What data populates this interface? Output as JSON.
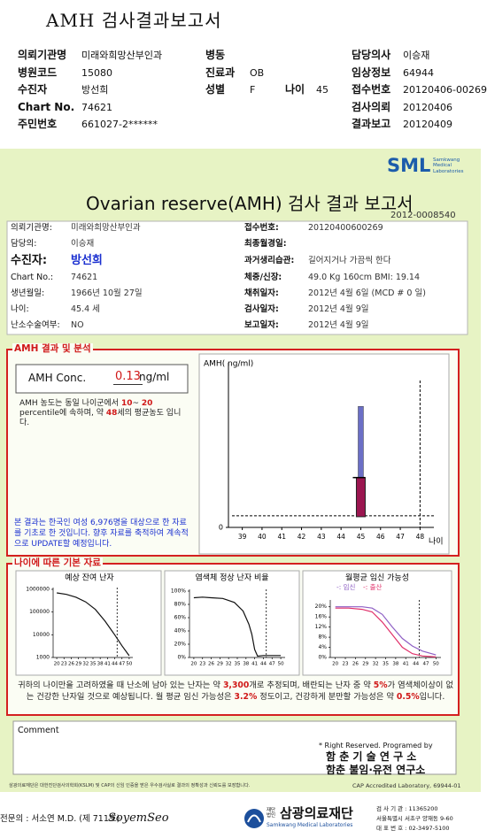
{
  "header": {
    "title": "AMH 검사결과보고서",
    "fields": [
      [
        "의뢰기관명",
        "미래와희망산부인과"
      ],
      [
        "병동"
      ],
      [
        "담당의사",
        "이승재"
      ],
      [
        "병원코드",
        "15080"
      ],
      [
        "진료과",
        "OB"
      ],
      [
        "임상정보",
        "64944"
      ],
      [
        "수진자",
        "방선희"
      ],
      [
        "성별",
        "F"
      ],
      [
        "나이",
        "45"
      ],
      [
        "접수번호",
        "20120406-00269"
      ],
      [
        "Chart No.",
        "74621"
      ],
      [
        "검사의뢰",
        "20120406"
      ],
      [
        "주민번호",
        "661027-2******"
      ],
      [
        "결과보고",
        "20120409"
      ]
    ]
  },
  "report": {
    "logo": "SML",
    "logo_sub": "Samkwang Medical Laboratories",
    "title": "Ovarian reserve(AMH) 검사 결과 보고서",
    "number": "2012-0008540",
    "info_left": [
      [
        "의뢰기관명:",
        "미래와희망산부인과"
      ],
      [
        "담당의:",
        "이승재"
      ],
      [
        "수진자:",
        "방선희"
      ],
      [
        "Chart No.:",
        "74621"
      ],
      [
        "생년월일:",
        "1966년 10월 27일"
      ],
      [
        "나이:",
        "45.4 세"
      ],
      [
        "난소수술여부:",
        "NO"
      ]
    ],
    "info_right": [
      [
        "접수번호:",
        "20120400600269"
      ],
      [
        "최종월경일:"
      ],
      [
        "과거생리습관:",
        "길어지거나 가끔씩 한다"
      ],
      [
        "체중/신장:",
        "49.0 Kg  160cm   BMI: 19.14"
      ],
      [
        "채취일자:",
        "2012년 4월 6일   (MCD # 0 일)"
      ],
      [
        "검사일자:",
        "2012년 4월 9일"
      ],
      [
        "보고일자:",
        "2012년 4월 9일"
      ]
    ],
    "amh": {
      "heading": "AMH 결과 및 분석",
      "conc_label": "AMH Conc.",
      "conc_value": 0.13,
      "conc_unit": "ng/ml",
      "note": [
        "AMH 농도는 동일 나이군에서 ",
        "10",
        "~ ",
        "20",
        " percentile에 속하며, 약 ",
        "48",
        "세의 평균농도 입니다."
      ],
      "disclaimer": "본 결과는 한국인 여성 6,976명을 대상으로 한 자료를 기초로 한 것입니다. 향후 자료를 축적하여 계속적으로 UPDATE할 예정입니다.",
      "chart": {
        "y_label": "AMH( ng/ml)",
        "x_label": "나이",
        "ylim": [
          0,
          1.8
        ],
        "yticks": [
          0
        ],
        "xlim": [
          38.3,
          48.7
        ],
        "xticks": [
          39,
          40,
          41,
          42,
          43,
          44,
          45,
          46,
          47,
          48
        ],
        "bar": {
          "x": 45,
          "low": 0.12,
          "mid": 0.56,
          "high": 1.36
        },
        "marker_x": 48
      }
    },
    "basic": {
      "heading": "나이에 따른 기본 자료",
      "charts": [
        {
          "title": "예상 잔여 난자",
          "log": true,
          "ylim": [
            1000,
            1000000
          ],
          "yticks": [
            1000000,
            100000,
            10000,
            1000
          ],
          "xlim": [
            18.5,
            51.5
          ],
          "xticks": [
            20,
            23,
            26,
            29,
            32,
            35,
            38,
            41,
            44,
            47,
            50
          ],
          "marker_x": 45,
          "x": [
            20,
            24,
            28,
            32,
            36,
            40,
            44,
            47,
            50
          ],
          "series": [
            {
              "color": "#111111",
              "values": [
                700000,
                600000,
                450000,
                280000,
                130000,
                40000,
                10000,
                3300,
                1200
              ]
            }
          ]
        },
        {
          "title": "염색체 정상 난자 비율",
          "log": false,
          "ylim": [
            0,
            100
          ],
          "yticks": [
            {
              "value": 100,
              "label": "100%"
            },
            {
              "value": 80,
              "label": "80%"
            },
            {
              "value": 60,
              "label": "60%"
            },
            {
              "value": 40,
              "label": "40%"
            },
            {
              "value": 20,
              "label": "20%"
            },
            {
              "value": 0,
              "label": "0%"
            }
          ],
          "xlim": [
            18.5,
            51.5
          ],
          "xticks": [
            20,
            23,
            26,
            29,
            32,
            35,
            38,
            41,
            44,
            47,
            50
          ],
          "marker_x": 45,
          "x": [
            20,
            23,
            26,
            30,
            34,
            37,
            39,
            40,
            41,
            42,
            44,
            47,
            50
          ],
          "series": [
            {
              "color": "#111111",
              "values": [
                90,
                91,
                90,
                89,
                83,
                70,
                50,
                35,
                12,
                2,
                3,
                3,
                3
              ]
            }
          ]
        },
        {
          "title": "월평균 임신 가능성",
          "log": false,
          "ylim": [
            0,
            22
          ],
          "yticks": [
            {
              "value": 20,
              "label": "20%"
            },
            {
              "value": 16,
              "label": "16%"
            },
            {
              "value": 12,
              "label": "12%"
            },
            {
              "value": 8,
              "label": "8%"
            },
            {
              "value": 4,
              "label": "4%"
            },
            {
              "value": 0,
              "label": "0%"
            }
          ],
          "xlim": [
            18.5,
            51.5
          ],
          "xticks": [
            20,
            23,
            26,
            29,
            32,
            35,
            38,
            41,
            44,
            47,
            50
          ],
          "marker_x": 45,
          "x": [
            20,
            24,
            28,
            31,
            34,
            37,
            40,
            43,
            46,
            50
          ],
          "series": [
            {
              "name": "-: 임신",
              "color": "#8e5fc4",
              "values": [
                20,
                20,
                20,
                19.5,
                17,
                12,
                7.5,
                4.5,
                2.5,
                1
              ]
            },
            {
              "name": "-: 출산",
              "color": "#e0306a",
              "values": [
                19.5,
                19.5,
                19,
                18,
                14,
                9,
                4,
                1.5,
                0.6,
                0.2
              ]
            }
          ]
        }
      ],
      "summary": [
        "귀하의 나이만을 고려하였을 때 난소에 남아 있는 난자는 약 ",
        "3,300",
        "개로 추정되며, 배란되는 난자 중 약 ",
        "5%",
        "가 염색체이상이 없는 건강한 난자일 것으로 예상됩니다. 월 평균 임신 가능성은 ",
        "3.2%",
        " 정도이고, 건강하게 분만할 가능성은 약 ",
        "0.5%",
        "입니다."
      ]
    },
    "comment": {
      "label": "Comment",
      "credit": "* Right Reserved. Programed by",
      "lab1": "함 춘 기 술 연 구 소",
      "lab2": "함춘 불임·유전 연구소"
    },
    "footer": {
      "accreditation": "삼광의료재단은 대한진단검사의학회(KSLM) 및 CAP의 신임 인증을 받은 우수검사실로 결과의 정확성과 신뢰도를 보장합니다.",
      "cap": "CAP Accredited Laboratory,  69944-01",
      "doctor": "전문의 : 서소연 M.D. (제 711호)",
      "signature": "SoyemSeo",
      "org_prefix": "재단법인",
      "org": "삼광의료재단",
      "org_en": "Samkwang Medical Laboratories",
      "contact": [
        "검 사 기 관 : 11365200",
        "서울특별시 서초구 양재동 9-60",
        "대 표 번 호 : 02-3497-5100"
      ]
    }
  }
}
